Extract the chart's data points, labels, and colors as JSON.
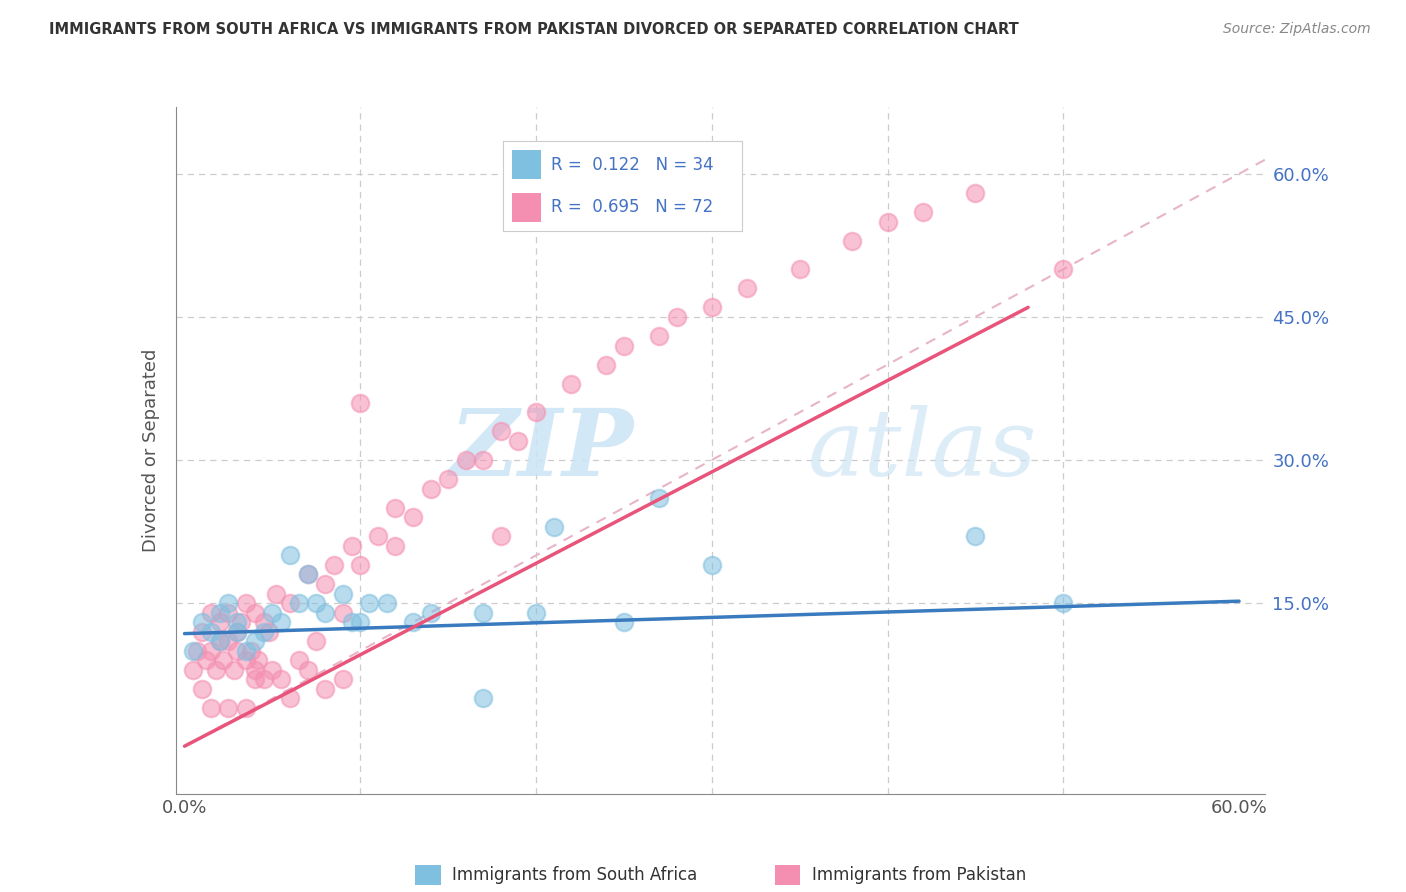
{
  "title": "IMMIGRANTS FROM SOUTH AFRICA VS IMMIGRANTS FROM PAKISTAN DIVORCED OR SEPARATED CORRELATION CHART",
  "source": "Source: ZipAtlas.com",
  "ylabel": "Divorced or Separated",
  "legend_label1": "Immigrants from South Africa",
  "legend_label2": "Immigrants from Pakistan",
  "r1": 0.122,
  "n1": 34,
  "r2": 0.695,
  "n2": 72,
  "color1": "#7fbfdf",
  "color2": "#f48fb1",
  "trend1_color": "#3a7abf",
  "trend2_color": "#e8547a",
  "trend_ref_color": "#e8b4c8",
  "xlim": [
    -0.005,
    0.615
  ],
  "ylim": [
    -0.05,
    0.67
  ],
  "x_tick_positions": [
    0.0,
    0.1,
    0.2,
    0.3,
    0.4,
    0.5,
    0.6
  ],
  "x_tick_labels": [
    "0.0%",
    "",
    "",
    "",
    "",
    "",
    "60.0%"
  ],
  "y_tick_positions": [
    0.0,
    0.15,
    0.3,
    0.45,
    0.6
  ],
  "y_tick_labels": [
    "",
    "15.0%",
    "30.0%",
    "45.0%",
    "60.0%"
  ],
  "watermark_zip": "ZIP",
  "watermark_atlas": "atlas",
  "trend1_x": [
    0.0,
    0.6
  ],
  "trend1_y": [
    0.118,
    0.152
  ],
  "trend2_x": [
    0.0,
    0.48
  ],
  "trend2_y": [
    0.0,
    0.46
  ],
  "ref_line_x": [
    0.0,
    0.615
  ],
  "ref_line_y": [
    0.0,
    0.615
  ],
  "south_africa_x": [
    0.005,
    0.01,
    0.015,
    0.02,
    0.02,
    0.025,
    0.03,
    0.03,
    0.035,
    0.04,
    0.045,
    0.05,
    0.055,
    0.06,
    0.065,
    0.07,
    0.075,
    0.08,
    0.09,
    0.095,
    0.1,
    0.105,
    0.115,
    0.13,
    0.14,
    0.17,
    0.2,
    0.21,
    0.25,
    0.27,
    0.3,
    0.45,
    0.5,
    0.17
  ],
  "south_africa_y": [
    0.1,
    0.13,
    0.12,
    0.14,
    0.11,
    0.15,
    0.12,
    0.13,
    0.1,
    0.11,
    0.12,
    0.14,
    0.13,
    0.2,
    0.15,
    0.18,
    0.15,
    0.14,
    0.16,
    0.13,
    0.13,
    0.15,
    0.15,
    0.13,
    0.14,
    0.14,
    0.14,
    0.23,
    0.13,
    0.26,
    0.19,
    0.22,
    0.15,
    0.05
  ],
  "pakistan_x": [
    0.005,
    0.007,
    0.01,
    0.01,
    0.012,
    0.015,
    0.015,
    0.018,
    0.02,
    0.02,
    0.022,
    0.025,
    0.025,
    0.028,
    0.03,
    0.03,
    0.032,
    0.035,
    0.035,
    0.038,
    0.04,
    0.04,
    0.042,
    0.045,
    0.045,
    0.048,
    0.05,
    0.052,
    0.055,
    0.06,
    0.065,
    0.07,
    0.075,
    0.08,
    0.085,
    0.09,
    0.095,
    0.1,
    0.11,
    0.12,
    0.13,
    0.14,
    0.15,
    0.16,
    0.17,
    0.18,
    0.19,
    0.2,
    0.22,
    0.24,
    0.25,
    0.27,
    0.28,
    0.3,
    0.32,
    0.35,
    0.38,
    0.4,
    0.42,
    0.45,
    0.5,
    0.18,
    0.1,
    0.12,
    0.07,
    0.08,
    0.09,
    0.06,
    0.04,
    0.035,
    0.025,
    0.015
  ],
  "pakistan_y": [
    0.08,
    0.1,
    0.06,
    0.12,
    0.09,
    0.1,
    0.14,
    0.08,
    0.11,
    0.13,
    0.09,
    0.11,
    0.14,
    0.08,
    0.12,
    0.1,
    0.13,
    0.09,
    0.15,
    0.1,
    0.08,
    0.14,
    0.09,
    0.13,
    0.07,
    0.12,
    0.08,
    0.16,
    0.07,
    0.15,
    0.09,
    0.18,
    0.11,
    0.17,
    0.19,
    0.14,
    0.21,
    0.19,
    0.22,
    0.25,
    0.24,
    0.27,
    0.28,
    0.3,
    0.3,
    0.33,
    0.32,
    0.35,
    0.38,
    0.4,
    0.42,
    0.43,
    0.45,
    0.46,
    0.48,
    0.5,
    0.53,
    0.55,
    0.56,
    0.58,
    0.5,
    0.22,
    0.36,
    0.21,
    0.08,
    0.06,
    0.07,
    0.05,
    0.07,
    0.04,
    0.04,
    0.04
  ]
}
